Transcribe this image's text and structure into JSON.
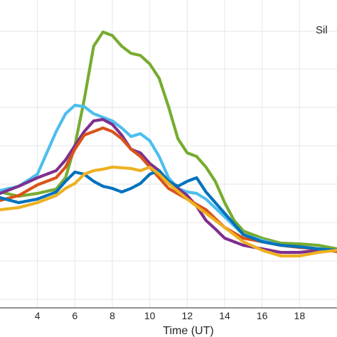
{
  "chart_data": {
    "type": "line",
    "title": "",
    "annotation": "Sil",
    "xlabel": "Time (UT)",
    "ylabel": "",
    "xlim": [
      2,
      20
    ],
    "x_ticks": [
      4,
      6,
      8,
      10,
      12,
      14,
      16,
      18
    ],
    "y_gridlines": 6,
    "grid": true,
    "series": [
      {
        "color": "#77AC30",
        "points": [
          [
            2,
            270
          ],
          [
            3,
            276
          ],
          [
            4,
            272
          ],
          [
            5,
            266
          ],
          [
            5.5,
            250
          ],
          [
            6,
            205
          ],
          [
            6.5,
            140
          ],
          [
            7,
            65
          ],
          [
            7.5,
            45
          ],
          [
            8,
            50
          ],
          [
            8.5,
            65
          ],
          [
            9,
            75
          ],
          [
            9.5,
            78
          ],
          [
            10,
            90
          ],
          [
            10.5,
            110
          ],
          [
            11,
            150
          ],
          [
            11.5,
            195
          ],
          [
            12,
            215
          ],
          [
            12.5,
            220
          ],
          [
            13,
            235
          ],
          [
            13.5,
            255
          ],
          [
            14,
            285
          ],
          [
            14.5,
            310
          ],
          [
            15,
            325
          ],
          [
            16,
            335
          ],
          [
            17,
            342
          ],
          [
            18,
            343
          ],
          [
            19,
            345
          ],
          [
            20,
            350
          ]
        ]
      },
      {
        "color": "#4DBEEE",
        "points": [
          [
            2,
            268
          ],
          [
            3,
            262
          ],
          [
            4,
            245
          ],
          [
            4.5,
            215
          ],
          [
            5,
            185
          ],
          [
            5.5,
            160
          ],
          [
            6,
            148
          ],
          [
            6.5,
            150
          ],
          [
            7,
            160
          ],
          [
            7.5,
            165
          ],
          [
            8,
            170
          ],
          [
            8.5,
            180
          ],
          [
            9,
            192
          ],
          [
            9.5,
            188
          ],
          [
            10,
            198
          ],
          [
            10.5,
            220
          ],
          [
            11,
            250
          ],
          [
            11.5,
            265
          ],
          [
            12,
            270
          ],
          [
            12.5,
            272
          ],
          [
            13,
            280
          ],
          [
            14,
            305
          ],
          [
            15,
            330
          ],
          [
            16,
            338
          ],
          [
            17,
            345
          ],
          [
            18,
            348
          ],
          [
            19,
            350
          ],
          [
            20,
            352
          ]
        ]
      },
      {
        "color": "#7E2F8E",
        "points": [
          [
            2,
            272
          ],
          [
            3,
            262
          ],
          [
            4,
            250
          ],
          [
            5,
            240
          ],
          [
            5.5,
            225
          ],
          [
            6,
            205
          ],
          [
            6.5,
            185
          ],
          [
            7,
            170
          ],
          [
            7.5,
            168
          ],
          [
            8,
            175
          ],
          [
            8.5,
            190
          ],
          [
            9,
            210
          ],
          [
            9.5,
            215
          ],
          [
            10,
            230
          ],
          [
            10.5,
            240
          ],
          [
            11,
            255
          ],
          [
            12,
            275
          ],
          [
            12.5,
            290
          ],
          [
            13,
            310
          ],
          [
            13.5,
            322
          ],
          [
            14,
            335
          ],
          [
            15,
            345
          ],
          [
            16,
            350
          ],
          [
            17,
            355
          ],
          [
            18,
            355
          ],
          [
            19,
            352
          ],
          [
            20,
            352
          ]
        ]
      },
      {
        "color": "#D95319",
        "points": [
          [
            2,
            282
          ],
          [
            3,
            275
          ],
          [
            4,
            260
          ],
          [
            5,
            250
          ],
          [
            5.5,
            235
          ],
          [
            6,
            210
          ],
          [
            6.5,
            190
          ],
          [
            7,
            185
          ],
          [
            7.5,
            180
          ],
          [
            8,
            185
          ],
          [
            8.5,
            195
          ],
          [
            9,
            210
          ],
          [
            9.5,
            220
          ],
          [
            10,
            235
          ],
          [
            10.5,
            250
          ],
          [
            11,
            265
          ],
          [
            12,
            280
          ],
          [
            13,
            295
          ],
          [
            14,
            320
          ],
          [
            15,
            335
          ],
          [
            16,
            340
          ],
          [
            17,
            345
          ],
          [
            18,
            348
          ],
          [
            19,
            350
          ],
          [
            20,
            354
          ]
        ]
      },
      {
        "color": "#0072BD",
        "points": [
          [
            2,
            278
          ],
          [
            3,
            285
          ],
          [
            4,
            280
          ],
          [
            5,
            270
          ],
          [
            5.5,
            255
          ],
          [
            6,
            242
          ],
          [
            6.5,
            245
          ],
          [
            7,
            255
          ],
          [
            7.5,
            262
          ],
          [
            8,
            265
          ],
          [
            8.5,
            270
          ],
          [
            9,
            265
          ],
          [
            9.5,
            258
          ],
          [
            10,
            245
          ],
          [
            10.5,
            240
          ],
          [
            11,
            255
          ],
          [
            11.5,
            262
          ],
          [
            12,
            255
          ],
          [
            12.5,
            250
          ],
          [
            13,
            270
          ],
          [
            14,
            300
          ],
          [
            15,
            330
          ],
          [
            16,
            340
          ],
          [
            17,
            345
          ],
          [
            18,
            347
          ],
          [
            19,
            350
          ],
          [
            20,
            352
          ]
        ]
      },
      {
        "color": "#EDB120",
        "points": [
          [
            2,
            295
          ],
          [
            3,
            292
          ],
          [
            4,
            285
          ],
          [
            5,
            275
          ],
          [
            5.5,
            265
          ],
          [
            6,
            258
          ],
          [
            6.5,
            245
          ],
          [
            7,
            240
          ],
          [
            7.5,
            238
          ],
          [
            8,
            235
          ],
          [
            9,
            237
          ],
          [
            9.5,
            240
          ],
          [
            10,
            235
          ],
          [
            10.5,
            245
          ],
          [
            11,
            258
          ],
          [
            12,
            280
          ],
          [
            13,
            300
          ],
          [
            14,
            320
          ],
          [
            15,
            340
          ],
          [
            16,
            352
          ],
          [
            17,
            360
          ],
          [
            18,
            360
          ],
          [
            19,
            355
          ],
          [
            20,
            352
          ]
        ]
      }
    ]
  }
}
